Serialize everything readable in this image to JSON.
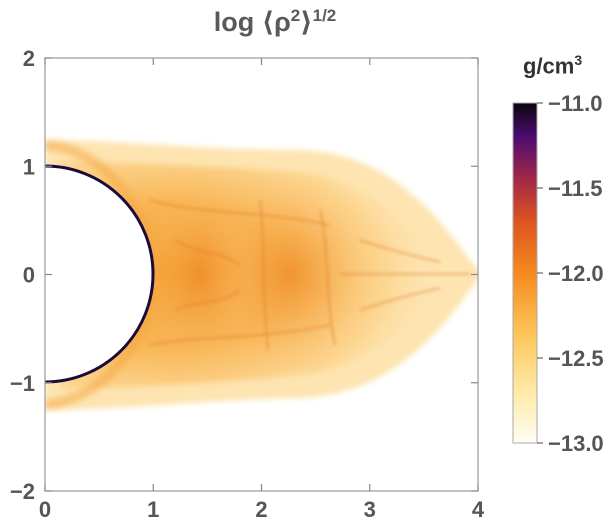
{
  "chart_data": {
    "type": "heatmap",
    "title": {
      "prefix": "log ⟨ρ",
      "sup1": "2",
      "suffix": "⟩",
      "sup2": "1/2"
    },
    "x_ticks": [
      "0",
      "1",
      "2",
      "3",
      "4"
    ],
    "y_ticks": [
      "2",
      "1",
      "0",
      "−1",
      "−2"
    ],
    "xlim": [
      0,
      4
    ],
    "ylim": [
      -2,
      2
    ],
    "colorbar": {
      "label_base": "g/cm",
      "label_exp": "3",
      "ticks": [
        "−11.0",
        "−11.5",
        "−12.0",
        "−12.5",
        "−13.0"
      ],
      "range": [
        -13.0,
        -11.0
      ],
      "colors": [
        "#fffdf5",
        "#ffe28a",
        "#fdb245",
        "#f58a1e",
        "#d8501a",
        "#8c1d4e",
        "#4a0c6b",
        "#0a0410"
      ]
    },
    "features": {
      "occulting_disk_radius": 1.0,
      "disk_center": [
        0,
        0
      ],
      "outflow_extent_x": 4.0
    }
  }
}
